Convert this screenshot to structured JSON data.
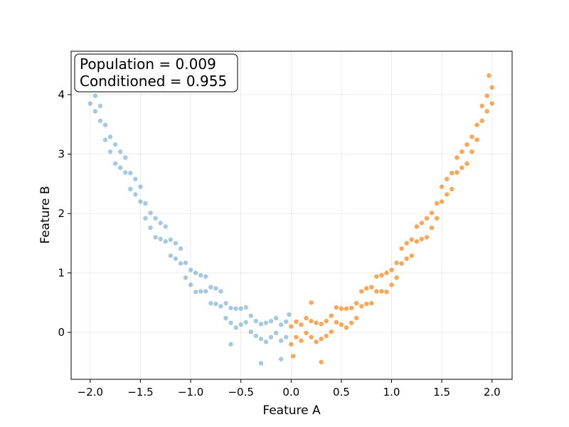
{
  "chart_data": {
    "type": "scatter",
    "title": "",
    "xlabel": "Feature A",
    "ylabel": "Feature B",
    "xlim": [
      -2.19,
      2.2
    ],
    "ylim": [
      -0.79,
      4.73
    ],
    "grid": true,
    "x_ticks": [
      "−2.0",
      "−1.5",
      "−1.0",
      "−0.5",
      "0.0",
      "0.5",
      "1.0",
      "1.5",
      "2.0"
    ],
    "x_tick_values": [
      -2.0,
      -1.5,
      -1.0,
      -0.5,
      0.0,
      0.5,
      1.0,
      1.5,
      2.0
    ],
    "y_ticks": [
      "0",
      "1",
      "2",
      "3",
      "4"
    ],
    "y_tick_values": [
      0,
      1,
      2,
      3,
      4
    ],
    "annotation": {
      "lines": [
        "Population = 0.009",
        "Conditioned = 0.955"
      ],
      "placement": "top-left"
    },
    "series": [
      {
        "color": "#1f77b4",
        "opacity": 0.4,
        "points": [
          [
            -2.0,
            4.12
          ],
          [
            -2.0,
            3.85
          ],
          [
            -1.95,
            3.72
          ],
          [
            -1.95,
            3.98
          ],
          [
            -1.9,
            3.81
          ],
          [
            -1.9,
            3.56
          ],
          [
            -1.85,
            3.24
          ],
          [
            -1.85,
            3.49
          ],
          [
            -1.8,
            3.29
          ],
          [
            -1.8,
            3.04
          ],
          [
            -1.75,
            2.84
          ],
          [
            -1.75,
            3.16
          ],
          [
            -1.7,
            3.04
          ],
          [
            -1.7,
            2.77
          ],
          [
            -1.65,
            2.69
          ],
          [
            -1.65,
            2.94
          ],
          [
            -1.6,
            2.68
          ],
          [
            -1.6,
            2.41
          ],
          [
            -1.55,
            2.32
          ],
          [
            -1.55,
            2.58
          ],
          [
            -1.5,
            2.45
          ],
          [
            -1.5,
            2.2
          ],
          [
            -1.45,
            1.92
          ],
          [
            -1.45,
            2.17
          ],
          [
            -1.4,
            2.01
          ],
          [
            -1.4,
            1.76
          ],
          [
            -1.35,
            1.6
          ],
          [
            -1.35,
            1.92
          ],
          [
            -1.3,
            1.84
          ],
          [
            -1.3,
            1.57
          ],
          [
            -1.25,
            1.53
          ],
          [
            -1.25,
            1.78
          ],
          [
            -1.2,
            1.56
          ],
          [
            -1.2,
            1.29
          ],
          [
            -1.15,
            1.24
          ],
          [
            -1.15,
            1.5
          ],
          [
            -1.1,
            1.41
          ],
          [
            -1.1,
            1.16
          ],
          [
            -1.05,
            0.92
          ],
          [
            -1.05,
            1.17
          ],
          [
            -1.0,
            1.05
          ],
          [
            -1.0,
            0.8
          ],
          [
            -0.95,
            0.68
          ],
          [
            -0.95,
            1.0
          ],
          [
            -0.9,
            0.96
          ],
          [
            -0.9,
            0.69
          ],
          [
            -0.85,
            0.69
          ],
          [
            -0.85,
            0.94
          ],
          [
            -0.8,
            0.76
          ],
          [
            -0.8,
            0.49
          ],
          [
            -0.75,
            0.48
          ],
          [
            -0.75,
            0.74
          ],
          [
            -0.7,
            0.69
          ],
          [
            -0.7,
            0.44
          ],
          [
            -0.65,
            0.24
          ],
          [
            -0.65,
            0.49
          ],
          [
            -0.6,
            0.41
          ],
          [
            -0.6,
            0.16
          ],
          [
            -0.55,
            0.08
          ],
          [
            -0.55,
            0.4
          ],
          [
            -0.5,
            0.4
          ],
          [
            -0.5,
            0.13
          ],
          [
            -0.45,
            0.17
          ],
          [
            -0.45,
            0.42
          ],
          [
            -0.4,
            0.28
          ],
          [
            -0.4,
            0.01
          ],
          [
            -0.35,
            -0.06
          ],
          [
            -0.35,
            0.19
          ],
          [
            -0.3,
            0.14
          ],
          [
            -0.3,
            -0.11
          ],
          [
            -0.25,
            -0.16
          ],
          [
            -0.25,
            0.16
          ],
          [
            -0.2,
            0.19
          ],
          [
            -0.2,
            -0.08
          ],
          [
            -0.15,
            -0.01
          ],
          [
            -0.15,
            0.24
          ],
          [
            -0.1,
            0.13
          ],
          [
            -0.1,
            -0.14
          ],
          [
            -0.05,
            -0.08
          ],
          [
            -0.05,
            0.18
          ],
          [
            -0.1,
            -0.45
          ],
          [
            -0.3,
            -0.52
          ],
          [
            -2.0,
            4.25
          ],
          [
            -0.6,
            -0.2
          ],
          [
            -0.02,
            0.3
          ]
        ]
      },
      {
        "color": "#ff7f0e",
        "opacity": 0.7,
        "points": [
          [
            2.0,
            3.85
          ],
          [
            2.0,
            4.12
          ],
          [
            1.95,
            3.98
          ],
          [
            1.95,
            3.72
          ],
          [
            1.9,
            3.56
          ],
          [
            1.9,
            3.81
          ],
          [
            1.85,
            3.49
          ],
          [
            1.85,
            3.24
          ],
          [
            1.8,
            3.04
          ],
          [
            1.8,
            3.29
          ],
          [
            1.75,
            3.16
          ],
          [
            1.75,
            2.84
          ],
          [
            1.7,
            2.77
          ],
          [
            1.7,
            3.04
          ],
          [
            1.65,
            2.94
          ],
          [
            1.65,
            2.69
          ],
          [
            1.6,
            2.41
          ],
          [
            1.6,
            2.68
          ],
          [
            1.55,
            2.58
          ],
          [
            1.55,
            2.32
          ],
          [
            1.5,
            2.2
          ],
          [
            1.5,
            2.45
          ],
          [
            1.45,
            2.17
          ],
          [
            1.45,
            1.92
          ],
          [
            1.4,
            1.76
          ],
          [
            1.4,
            2.01
          ],
          [
            1.35,
            1.92
          ],
          [
            1.35,
            1.6
          ],
          [
            1.3,
            1.57
          ],
          [
            1.3,
            1.84
          ],
          [
            1.25,
            1.78
          ],
          [
            1.25,
            1.53
          ],
          [
            1.2,
            1.29
          ],
          [
            1.2,
            1.56
          ],
          [
            1.15,
            1.5
          ],
          [
            1.15,
            1.24
          ],
          [
            1.1,
            1.16
          ],
          [
            1.1,
            1.41
          ],
          [
            1.05,
            1.17
          ],
          [
            1.05,
            0.92
          ],
          [
            1.0,
            0.8
          ],
          [
            1.0,
            1.05
          ],
          [
            0.95,
            1.0
          ],
          [
            0.95,
            0.68
          ],
          [
            0.9,
            0.69
          ],
          [
            0.9,
            0.96
          ],
          [
            0.85,
            0.94
          ],
          [
            0.85,
            0.69
          ],
          [
            0.8,
            0.49
          ],
          [
            0.8,
            0.76
          ],
          [
            0.75,
            0.74
          ],
          [
            0.75,
            0.48
          ],
          [
            0.7,
            0.44
          ],
          [
            0.7,
            0.69
          ],
          [
            0.65,
            0.49
          ],
          [
            0.65,
            0.24
          ],
          [
            0.6,
            0.16
          ],
          [
            0.6,
            0.41
          ],
          [
            0.55,
            0.4
          ],
          [
            0.55,
            0.08
          ],
          [
            0.5,
            0.13
          ],
          [
            0.5,
            0.4
          ],
          [
            0.45,
            0.42
          ],
          [
            0.45,
            0.17
          ],
          [
            0.4,
            0.01
          ],
          [
            0.4,
            0.28
          ],
          [
            0.35,
            0.19
          ],
          [
            0.35,
            -0.06
          ],
          [
            0.3,
            -0.11
          ],
          [
            0.3,
            0.14
          ],
          [
            0.25,
            0.16
          ],
          [
            0.25,
            -0.16
          ],
          [
            0.2,
            -0.08
          ],
          [
            0.2,
            0.19
          ],
          [
            0.15,
            0.24
          ],
          [
            0.15,
            -0.01
          ],
          [
            0.1,
            -0.14
          ],
          [
            0.1,
            0.13
          ],
          [
            0.05,
            0.18
          ],
          [
            0.05,
            -0.08
          ],
          [
            0.0,
            0.1
          ],
          [
            0.0,
            -0.2
          ],
          [
            0.3,
            -0.5
          ],
          [
            1.97,
            4.32
          ],
          [
            0.2,
            0.5
          ],
          [
            0.02,
            -0.4
          ]
        ]
      }
    ]
  }
}
